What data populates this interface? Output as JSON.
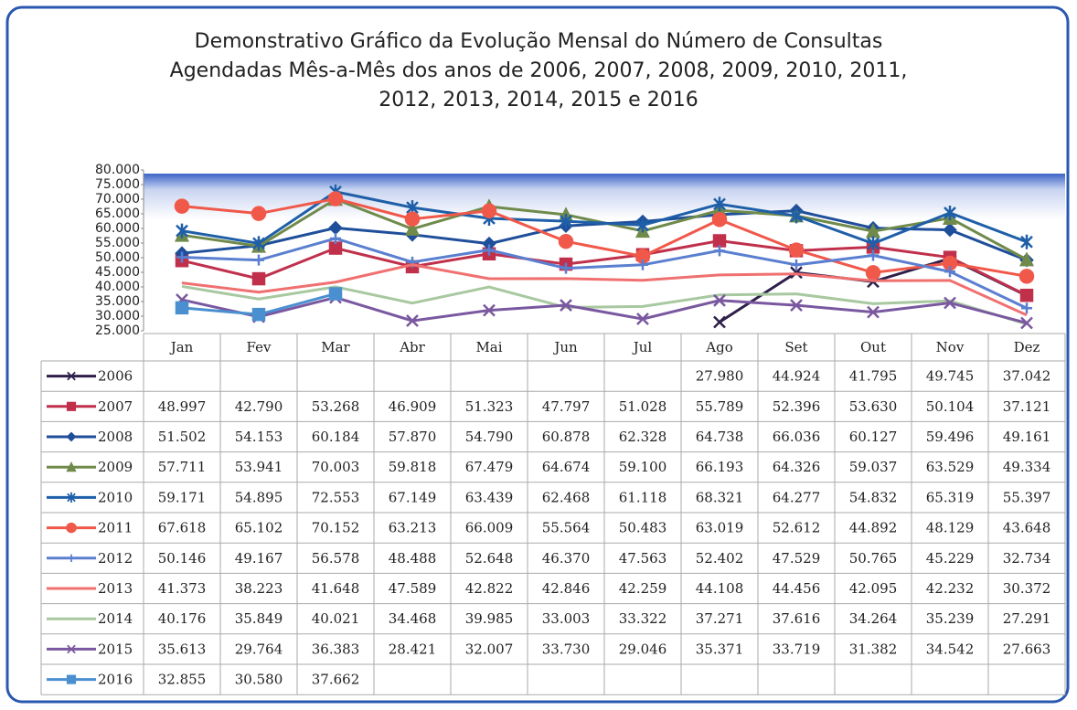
{
  "chart_data": {
    "type": "line",
    "title": "Demonstrativo Gráfico da Evolução Mensal do Número de Consultas\nAgendadas Mês-a-Mês dos anos de 2006, 2007, 2008, 2009, 2010, 2011,\n2012, 2013, 2014, 2015 e 2016",
    "categories": [
      "Jan",
      "Fev",
      "Mar",
      "Abr",
      "Mai",
      "Jun",
      "Jul",
      "Ago",
      "Set",
      "Out",
      "Nov",
      "Dez"
    ],
    "ylim": [
      25000,
      80000
    ],
    "yticks": [
      {
        "value": 25000,
        "label": "25.000"
      },
      {
        "value": 30000,
        "label": "30.000"
      },
      {
        "value": 35000,
        "label": "35.000"
      },
      {
        "value": 40000,
        "label": "40.000"
      },
      {
        "value": 45000,
        "label": "45.000"
      },
      {
        "value": 50000,
        "label": "50.000"
      },
      {
        "value": 55000,
        "label": "55.000"
      },
      {
        "value": 60000,
        "label": "60.000"
      },
      {
        "value": 65000,
        "label": "65.000"
      },
      {
        "value": 70000,
        "label": "70.000"
      },
      {
        "value": 75000,
        "label": "75.000"
      },
      {
        "value": 80000,
        "label": "80.000"
      }
    ],
    "series": [
      {
        "name": "2006",
        "color": "#2e1f4a",
        "marker": "x",
        "values": [
          null,
          null,
          null,
          null,
          null,
          null,
          null,
          27980,
          44924,
          41795,
          49745,
          37042
        ],
        "value_labels": [
          null,
          null,
          null,
          null,
          null,
          null,
          null,
          "27.980",
          "44.924",
          "41.795",
          "49.745",
          "37.042"
        ]
      },
      {
        "name": "2007",
        "color": "#c0304b",
        "marker": "square",
        "values": [
          48997,
          42790,
          53268,
          46909,
          51323,
          47797,
          51028,
          55789,
          52396,
          53630,
          50104,
          37121
        ],
        "value_labels": [
          "48.997",
          "42.790",
          "53.268",
          "46.909",
          "51.323",
          "47.797",
          "51.028",
          "55.789",
          "52.396",
          "53.630",
          "50.104",
          "37.121"
        ]
      },
      {
        "name": "2008",
        "color": "#1f4e9a",
        "marker": "diamond",
        "values": [
          51502,
          54153,
          60184,
          57870,
          54790,
          60878,
          62328,
          64738,
          66036,
          60127,
          59496,
          49161
        ],
        "value_labels": [
          "51.502",
          "54.153",
          "60.184",
          "57.870",
          "54.790",
          "60.878",
          "62.328",
          "64.738",
          "66.036",
          "60.127",
          "59.496",
          "49.161"
        ]
      },
      {
        "name": "2009",
        "color": "#6f8a4a",
        "marker": "triangle",
        "values": [
          57711,
          53941,
          70003,
          59818,
          67479,
          64674,
          59100,
          66193,
          64326,
          59037,
          63529,
          49334
        ],
        "value_labels": [
          "57.711",
          "53.941",
          "70.003",
          "59.818",
          "67.479",
          "64.674",
          "59.100",
          "66.193",
          "64.326",
          "59.037",
          "63.529",
          "49.334"
        ]
      },
      {
        "name": "2010",
        "color": "#1f5fa8",
        "marker": "star",
        "values": [
          59171,
          54895,
          72553,
          67149,
          63439,
          62468,
          61118,
          68321,
          64277,
          54832,
          65319,
          55397
        ],
        "value_labels": [
          "59.171",
          "54.895",
          "72.553",
          "67.149",
          "63.439",
          "62.468",
          "61.118",
          "68.321",
          "64.277",
          "54.832",
          "65.319",
          "55.397"
        ]
      },
      {
        "name": "2011",
        "color": "#f0584a",
        "marker": "circle",
        "values": [
          67618,
          65102,
          70152,
          63213,
          66009,
          55564,
          50483,
          63019,
          52612,
          44892,
          48129,
          43648
        ],
        "value_labels": [
          "67.618",
          "65.102",
          "70.152",
          "63.213",
          "66.009",
          "55.564",
          "50.483",
          "63.019",
          "52.612",
          "44.892",
          "48.129",
          "43.648"
        ]
      },
      {
        "name": "2012",
        "color": "#5b7fd0",
        "marker": "plus",
        "values": [
          50146,
          49167,
          56578,
          48488,
          52648,
          46370,
          47563,
          52402,
          47529,
          50765,
          45229,
          32734
        ],
        "value_labels": [
          "50.146",
          "49.167",
          "56.578",
          "48.488",
          "52.648",
          "46.370",
          "47.563",
          "52.402",
          "47.529",
          "50.765",
          "45.229",
          "32.734"
        ]
      },
      {
        "name": "2013",
        "color": "#f07070",
        "marker": "none",
        "values": [
          41373,
          38223,
          41648,
          47589,
          42822,
          42846,
          42259,
          44108,
          44456,
          42095,
          42232,
          30372
        ],
        "value_labels": [
          "41.373",
          "38.223",
          "41.648",
          "47.589",
          "42.822",
          "42.846",
          "42.259",
          "44.108",
          "44.456",
          "42.095",
          "42.232",
          "30.372"
        ]
      },
      {
        "name": "2014",
        "color": "#a8c8a0",
        "marker": "none",
        "values": [
          40176,
          35849,
          40021,
          34468,
          39985,
          33003,
          33322,
          37271,
          37616,
          34264,
          35239,
          27291
        ],
        "value_labels": [
          "40.176",
          "35.849",
          "40.021",
          "34.468",
          "39.985",
          "33.003",
          "33.322",
          "37.271",
          "37.616",
          "34.264",
          "35.239",
          "27.291"
        ]
      },
      {
        "name": "2015",
        "color": "#7a58a0",
        "marker": "x",
        "values": [
          35613,
          29764,
          36383,
          28421,
          32007,
          33730,
          29046,
          35371,
          33719,
          31382,
          34542,
          27663
        ],
        "value_labels": [
          "35.613",
          "29.764",
          "36.383",
          "28.421",
          "32.007",
          "33.730",
          "29.046",
          "35.371",
          "33.719",
          "31.382",
          "34.542",
          "27.663"
        ]
      },
      {
        "name": "2016",
        "color": "#4a8fd0",
        "marker": "square",
        "values": [
          32855,
          30580,
          37662,
          null,
          null,
          null,
          null,
          null,
          null,
          null,
          null,
          null
        ],
        "value_labels": [
          "32.855",
          "30.580",
          "37.662",
          null,
          null,
          null,
          null,
          null,
          null,
          null,
          null,
          null
        ]
      }
    ]
  }
}
